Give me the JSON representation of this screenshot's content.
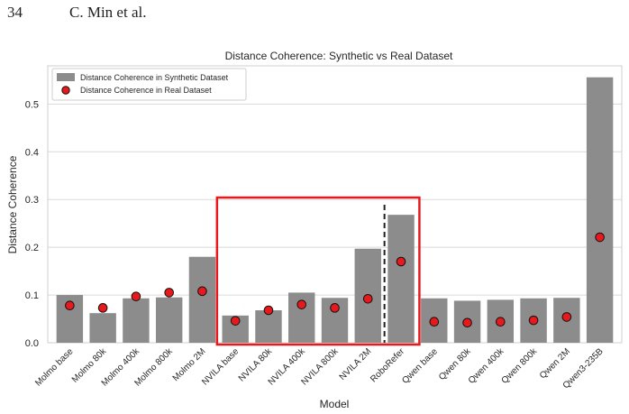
{
  "page": {
    "number": "34",
    "authors": "C. Min et al."
  },
  "colors": {
    "bar": "#8c8c8c",
    "point_fill": "#e8191c",
    "point_edge": "#111111",
    "highlight_box": "#e8191c",
    "divider": "#222222",
    "grid": "#d9d9d9",
    "axes": "#cfcfcf"
  },
  "chart_data": {
    "type": "bar",
    "title": "Distance Coherence: Synthetic vs Real Dataset",
    "xlabel": "Model",
    "ylabel": "Distance Coherence",
    "ylim": [
      0,
      0.58
    ],
    "yticks": [
      0.0,
      0.1,
      0.2,
      0.3,
      0.4,
      0.5
    ],
    "ytick_labels": [
      "0.0",
      "0.1",
      "0.2",
      "0.3",
      "0.4",
      "0.5"
    ],
    "grid": true,
    "legend_position": "top-left",
    "categories": [
      "Molmo base",
      "Molmo 80k",
      "Molmo 400k",
      "Molmo 800k",
      "Molmo 2M",
      "NVILA base",
      "NVILA 80k",
      "NVILA 400k",
      "NVILA 800k",
      "NVILA 2M",
      "RoboRefer",
      "Qwen base",
      "Qwen 80k",
      "Qwen 400k",
      "Qwen 800k",
      "Qwen 2M",
      "Qwen3-235B"
    ],
    "series": [
      {
        "name": "Distance Coherence in Synthetic Dataset",
        "kind": "bar",
        "values": [
          0.1,
          0.062,
          0.093,
          0.095,
          0.18,
          0.057,
          0.068,
          0.105,
          0.094,
          0.197,
          0.268,
          0.093,
          0.088,
          0.09,
          0.093,
          0.094,
          0.556
        ]
      },
      {
        "name": "Distance Coherence in Real Dataset",
        "kind": "scatter",
        "values": [
          0.078,
          0.073,
          0.097,
          0.105,
          0.108,
          0.046,
          0.068,
          0.08,
          0.073,
          0.092,
          0.17,
          0.044,
          0.042,
          0.044,
          0.047,
          0.054,
          0.221
        ]
      }
    ],
    "highlight": {
      "from_index": 5,
      "to_index": 10,
      "divider_between": [
        9,
        10
      ]
    }
  }
}
